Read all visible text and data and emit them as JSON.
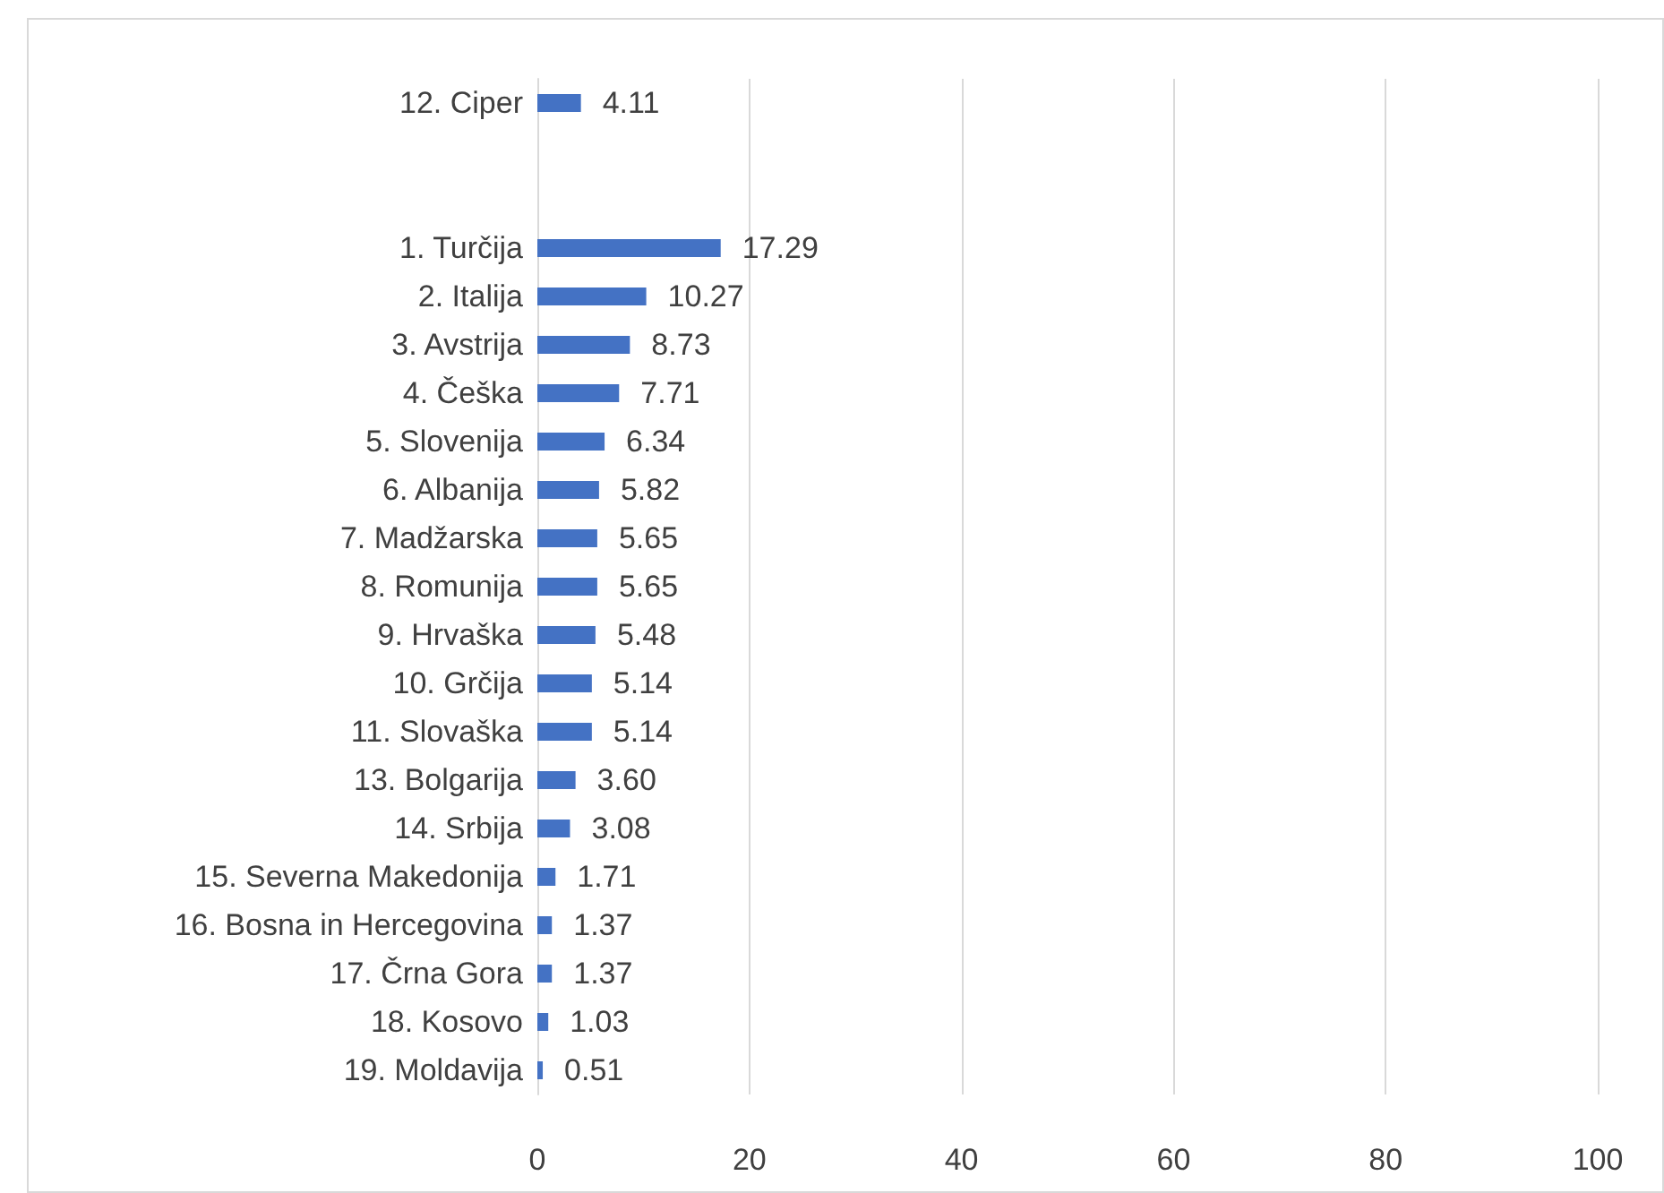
{
  "chart_data": {
    "type": "bar",
    "orientation": "horizontal",
    "categories": [
      "12. Ciper",
      null,
      null,
      "1. Turčija",
      "2. Italija",
      "3. Avstrija",
      "4. Češka",
      "5. Slovenija",
      "6. Albanija",
      "7. Madžarska",
      "8. Romunija",
      "9. Hrvaška",
      "10. Grčija",
      "11. Slovaška",
      "13. Bolgarija",
      "14. Srbija",
      "15. Severna Makedonija",
      "16. Bosna in Hercegovina",
      "17. Črna Gora",
      "18. Kosovo",
      "19. Moldavija"
    ],
    "values": [
      4.11,
      null,
      null,
      17.29,
      10.27,
      8.73,
      7.71,
      6.34,
      5.82,
      5.65,
      5.65,
      5.48,
      5.14,
      5.14,
      3.6,
      3.08,
      1.71,
      1.37,
      1.37,
      1.03,
      0.51
    ],
    "value_labels": [
      "4.11",
      null,
      null,
      "17.29",
      "10.27",
      "8.73",
      "7.71",
      "6.34",
      "5.82",
      "5.65",
      "5.65",
      "5.48",
      "5.14",
      "5.14",
      "3.60",
      "3.08",
      "1.71",
      "1.37",
      "1.37",
      "1.03",
      "0.51"
    ],
    "color": "#4472c4",
    "xlim": [
      0,
      100
    ],
    "xticks": [
      0,
      20,
      40,
      60,
      80,
      100
    ],
    "grid": "x"
  }
}
